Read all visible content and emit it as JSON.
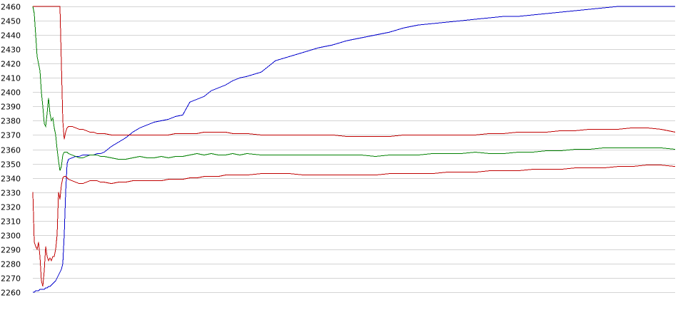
{
  "chart_data": {
    "type": "line",
    "title": "",
    "xlabel": "",
    "ylabel": "",
    "ylim": [
      2260,
      2460
    ],
    "yticks": [
      2260,
      2270,
      2280,
      2290,
      2300,
      2310,
      2320,
      2330,
      2340,
      2350,
      2360,
      2370,
      2380,
      2390,
      2400,
      2410,
      2420,
      2430,
      2440,
      2450,
      2460
    ],
    "ytick_labels": [
      "2260",
      "2270",
      "2280",
      "2290",
      "2300",
      "2310",
      "2320",
      "2330",
      "2340",
      "2350",
      "2360",
      "2370",
      "2380",
      "2390",
      "2400",
      "2410",
      "2420",
      "2430",
      "2440",
      "2450",
      "2460"
    ],
    "grid": true,
    "legend": "none",
    "x": [
      0,
      2,
      4,
      6,
      8,
      10,
      12,
      14,
      16,
      18,
      20,
      22,
      24,
      26,
      28,
      30,
      32,
      34,
      36,
      38,
      40,
      42,
      44,
      46,
      48,
      50,
      55,
      60,
      65,
      70,
      75,
      80,
      85,
      90,
      95,
      100,
      110,
      120,
      130,
      140,
      150,
      160,
      170,
      180,
      190,
      200,
      210,
      220,
      230,
      240,
      250,
      260,
      270,
      280,
      290,
      300,
      320,
      340,
      360,
      380,
      400,
      420,
      440,
      460,
      480,
      500,
      520,
      540,
      560,
      580,
      600,
      620,
      640,
      660,
      680,
      700,
      720,
      740,
      760,
      780,
      800,
      820,
      840,
      860,
      880,
      900
    ],
    "series": [
      {
        "color": "#0000cc",
        "values": [
          2260,
          2260,
          2261,
          2261,
          2261,
          2262,
          2262,
          2262,
          2262,
          2263,
          2263,
          2264,
          2264,
          2265,
          2266,
          2267,
          2268,
          2270,
          2272,
          2274,
          2276,
          2280,
          2300,
          2330,
          2350,
          2353,
          2354,
          2355,
          2355,
          2356,
          2356,
          2356,
          2356,
          2357,
          2357,
          2358,
          2362,
          2365,
          2368,
          2372,
          2375,
          2377,
          2379,
          2380,
          2381,
          2383,
          2384,
          2393,
          2395,
          2397,
          2401,
          2403,
          2405,
          2408,
          2410,
          2411,
          2414,
          2422,
          2425,
          2428,
          2431,
          2433,
          2436,
          2438,
          2440,
          2442,
          2445,
          2447,
          2448,
          2449,
          2450,
          2451,
          2452,
          2453,
          2453,
          2454,
          2455,
          2456,
          2457,
          2458,
          2459,
          2460,
          2460,
          2460,
          2460,
          2460
        ]
      },
      {
        "color": "#008000",
        "values": [
          2460,
          2455,
          2440,
          2425,
          2420,
          2415,
          2400,
          2390,
          2378,
          2376,
          2385,
          2396,
          2385,
          2380,
          2382,
          2375,
          2370,
          2360,
          2352,
          2345,
          2348,
          2356,
          2358,
          2358,
          2358,
          2357,
          2356,
          2355,
          2354,
          2354,
          2355,
          2356,
          2356,
          2356,
          2355,
          2355,
          2354,
          2353,
          2353,
          2354,
          2355,
          2354,
          2354,
          2355,
          2354,
          2355,
          2355,
          2356,
          2357,
          2356,
          2357,
          2356,
          2356,
          2357,
          2356,
          2357,
          2356,
          2356,
          2356,
          2356,
          2356,
          2356,
          2356,
          2356,
          2355,
          2356,
          2356,
          2356,
          2357,
          2357,
          2357,
          2358,
          2357,
          2357,
          2358,
          2358,
          2359,
          2359,
          2360,
          2360,
          2361,
          2361,
          2361,
          2361,
          2361,
          2360
        ]
      },
      {
        "color": "#c00000",
        "values": [
          2460,
          2460,
          2460,
          2460,
          2460,
          2460,
          2460,
          2460,
          2460,
          2460,
          2460,
          2460,
          2460,
          2460,
          2460,
          2460,
          2460,
          2460,
          2460,
          2460,
          2420,
          2380,
          2367,
          2372,
          2375,
          2376,
          2376,
          2375,
          2374,
          2374,
          2373,
          2372,
          2372,
          2371,
          2371,
          2371,
          2370,
          2370,
          2370,
          2370,
          2370,
          2370,
          2370,
          2370,
          2370,
          2371,
          2371,
          2371,
          2371,
          2372,
          2372,
          2372,
          2372,
          2371,
          2371,
          2371,
          2370,
          2370,
          2370,
          2370,
          2370,
          2370,
          2369,
          2369,
          2369,
          2369,
          2370,
          2370,
          2370,
          2370,
          2370,
          2370,
          2371,
          2371,
          2372,
          2372,
          2372,
          2373,
          2373,
          2374,
          2374,
          2374,
          2375,
          2375,
          2374,
          2372
        ]
      },
      {
        "color": "#c00000",
        "values": [
          2330,
          2295,
          2292,
          2290,
          2295,
          2285,
          2268,
          2264,
          2275,
          2292,
          2285,
          2282,
          2284,
          2282,
          2285,
          2285,
          2290,
          2300,
          2330,
          2325,
          2335,
          2340,
          2341,
          2341,
          2340,
          2339,
          2338,
          2337,
          2336,
          2336,
          2337,
          2338,
          2338,
          2338,
          2337,
          2337,
          2336,
          2337,
          2337,
          2338,
          2338,
          2338,
          2338,
          2338,
          2339,
          2339,
          2339,
          2340,
          2340,
          2341,
          2341,
          2341,
          2342,
          2342,
          2342,
          2342,
          2343,
          2343,
          2343,
          2342,
          2342,
          2342,
          2342,
          2342,
          2342,
          2343,
          2343,
          2343,
          2343,
          2344,
          2344,
          2344,
          2345,
          2345,
          2345,
          2346,
          2346,
          2346,
          2347,
          2347,
          2347,
          2348,
          2348,
          2349,
          2349,
          2348
        ]
      }
    ]
  }
}
